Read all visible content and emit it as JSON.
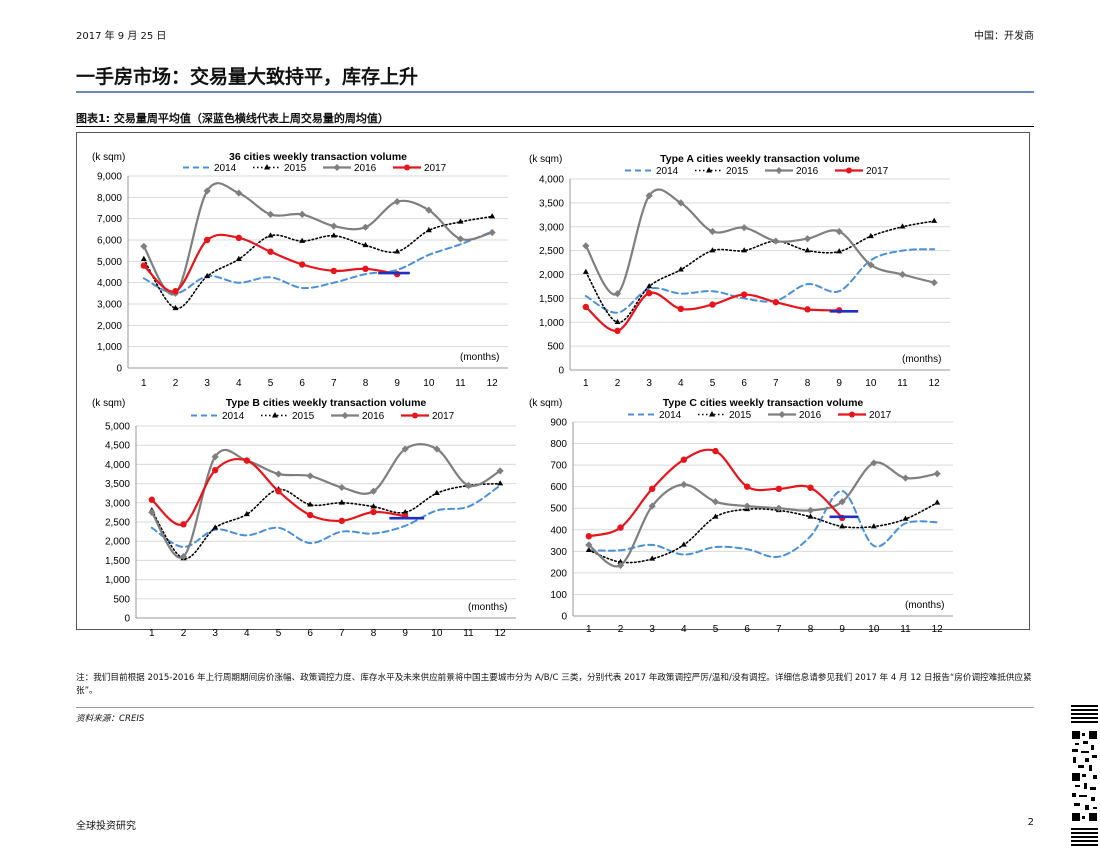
{
  "header": {
    "date": "2017 年 9 月 25 日",
    "region": "中国：开发商"
  },
  "page_title": "一手房市场：交易量大致持平，库存上升",
  "figure_title": "图表1: 交易量周平均值（深蓝色横线代表上周交易量的周均值）",
  "note": "注：我们目前根据 2015-2016 年上行周期期间房价涨幅、政策调控力度、库存水平及未来供应前景将中国主要城市分为 A/B/C 三类，分别代表 2017 年政策调控严厉/温和/没有调控。详细信息请参见我们 2017 年 4 月 12 日报告“房价调控难抵供应紧张”。",
  "source": "资料来源：CREIS",
  "footer": {
    "left": "全球投资研究",
    "page": "2"
  },
  "colors": {
    "s2014": "#4a90d9",
    "s2015": "#000000",
    "s2016": "#7f7f7f",
    "s2017": "#e8141c",
    "avg_line": "#1f2fbf"
  },
  "chart_data": [
    {
      "type": "line",
      "title": "36 cities weekly transaction volume",
      "ylabel": "(k sqm)",
      "xlabel": "(months)",
      "x": [
        1,
        2,
        3,
        4,
        5,
        6,
        7,
        8,
        9,
        10,
        11,
        12
      ],
      "ylim": [
        0,
        9000
      ],
      "yticks": [
        0,
        1000,
        2000,
        3000,
        4000,
        5000,
        6000,
        7000,
        8000,
        9000
      ],
      "ytick_labels": [
        "0",
        "1,000",
        "2,000",
        "3,000",
        "4,000",
        "5,000",
        "6,000",
        "7,000",
        "8,000",
        "9,000"
      ],
      "series": [
        {
          "name": "2014",
          "values": [
            4200,
            3500,
            4300,
            4000,
            4250,
            3750,
            4000,
            4400,
            4600,
            5300,
            5800,
            6400
          ]
        },
        {
          "name": "2015",
          "values": [
            5100,
            2800,
            4300,
            5100,
            6200,
            5950,
            6200,
            5750,
            5450,
            6450,
            6850,
            7100
          ]
        },
        {
          "name": "2016",
          "values": [
            5700,
            3500,
            8300,
            8200,
            7200,
            7200,
            6650,
            6600,
            7800,
            7400,
            6050,
            6350
          ]
        },
        {
          "name": "2017",
          "values": [
            4800,
            3600,
            6000,
            6100,
            5450,
            4850,
            4550,
            4650,
            4400,
            null,
            null,
            null
          ]
        }
      ],
      "avg_line": {
        "x": [
          8.4,
          9.4
        ],
        "y": 4450
      }
    },
    {
      "type": "line",
      "title": "Type A cities weekly transaction volume",
      "ylabel": "(k sqm)",
      "xlabel": "(months)",
      "x": [
        1,
        2,
        3,
        4,
        5,
        6,
        7,
        8,
        9,
        10,
        11,
        12
      ],
      "ylim": [
        0,
        4000
      ],
      "yticks": [
        0,
        500,
        1000,
        1500,
        2000,
        2500,
        3000,
        3500,
        4000
      ],
      "ytick_labels": [
        "0",
        "500",
        "1,000",
        "1,500",
        "2,000",
        "2,500",
        "3,000",
        "3,500",
        "4,000"
      ],
      "series": [
        {
          "name": "2014",
          "values": [
            1550,
            1200,
            1700,
            1600,
            1650,
            1500,
            1450,
            1800,
            1650,
            2300,
            2500,
            2530
          ]
        },
        {
          "name": "2015",
          "values": [
            2050,
            1000,
            1750,
            2100,
            2500,
            2500,
            2700,
            2500,
            2480,
            2800,
            3000,
            3120
          ]
        },
        {
          "name": "2016",
          "values": [
            2600,
            1600,
            3650,
            3500,
            2900,
            2980,
            2700,
            2750,
            2900,
            2200,
            2000,
            1830
          ]
        },
        {
          "name": "2017",
          "values": [
            1320,
            820,
            1610,
            1280,
            1370,
            1580,
            1420,
            1270,
            1250,
            null,
            null,
            null
          ]
        }
      ],
      "avg_line": {
        "x": [
          8.7,
          9.6
        ],
        "y": 1230
      }
    },
    {
      "type": "line",
      "title": "Type B cities weekly transaction volume",
      "ylabel": "(k sqm)",
      "xlabel": "(months)",
      "x": [
        1,
        2,
        3,
        4,
        5,
        6,
        7,
        8,
        9,
        10,
        11,
        12
      ],
      "ylim": [
        0,
        5000
      ],
      "yticks": [
        0,
        500,
        1000,
        1500,
        2000,
        2500,
        3000,
        3500,
        4000,
        4500,
        5000
      ],
      "ytick_labels": [
        "0",
        "500",
        "1,000",
        "1,500",
        "2,000",
        "2,500",
        "3,000",
        "3,500",
        "4,000",
        "4,500",
        "5,000"
      ],
      "series": [
        {
          "name": "2014",
          "values": [
            2350,
            1850,
            2300,
            2150,
            2350,
            1950,
            2250,
            2200,
            2400,
            2800,
            2900,
            3450
          ]
        },
        {
          "name": "2015",
          "values": [
            2800,
            1550,
            2350,
            2700,
            3350,
            2950,
            3000,
            2900,
            2750,
            3250,
            3450,
            3500
          ]
        },
        {
          "name": "2016",
          "values": [
            2750,
            1600,
            4200,
            4100,
            3750,
            3700,
            3400,
            3300,
            4400,
            4400,
            3450,
            3830
          ]
        },
        {
          "name": "2017",
          "values": [
            3080,
            2440,
            3850,
            4100,
            3300,
            2680,
            2530,
            2760,
            2650,
            null,
            null,
            null
          ]
        }
      ],
      "avg_line": {
        "x": [
          8.5,
          9.6
        ],
        "y": 2600
      }
    },
    {
      "type": "line",
      "title": "Type C cities weekly transaction volume",
      "ylabel": "(k sqm)",
      "xlabel": "(months)",
      "x": [
        1,
        2,
        3,
        4,
        5,
        6,
        7,
        8,
        9,
        10,
        11,
        12
      ],
      "ylim": [
        0,
        900
      ],
      "yticks": [
        0,
        100,
        200,
        300,
        400,
        500,
        600,
        700,
        800,
        900
      ],
      "ytick_labels": [
        "0",
        "100",
        "200",
        "300",
        "400",
        "500",
        "600",
        "700",
        "800",
        "900"
      ],
      "series": [
        {
          "name": "2014",
          "values": [
            305,
            305,
            330,
            285,
            320,
            310,
            275,
            370,
            580,
            325,
            430,
            435
          ]
        },
        {
          "name": "2015",
          "values": [
            305,
            250,
            265,
            330,
            460,
            495,
            490,
            460,
            415,
            415,
            450,
            525
          ]
        },
        {
          "name": "2016",
          "values": [
            330,
            235,
            510,
            610,
            530,
            510,
            500,
            490,
            530,
            710,
            640,
            660
          ]
        },
        {
          "name": "2017",
          "values": [
            370,
            410,
            590,
            725,
            765,
            600,
            590,
            595,
            455,
            null,
            null,
            null
          ]
        }
      ],
      "avg_line": {
        "x": [
          8.6,
          9.5
        ],
        "y": 460
      }
    }
  ]
}
